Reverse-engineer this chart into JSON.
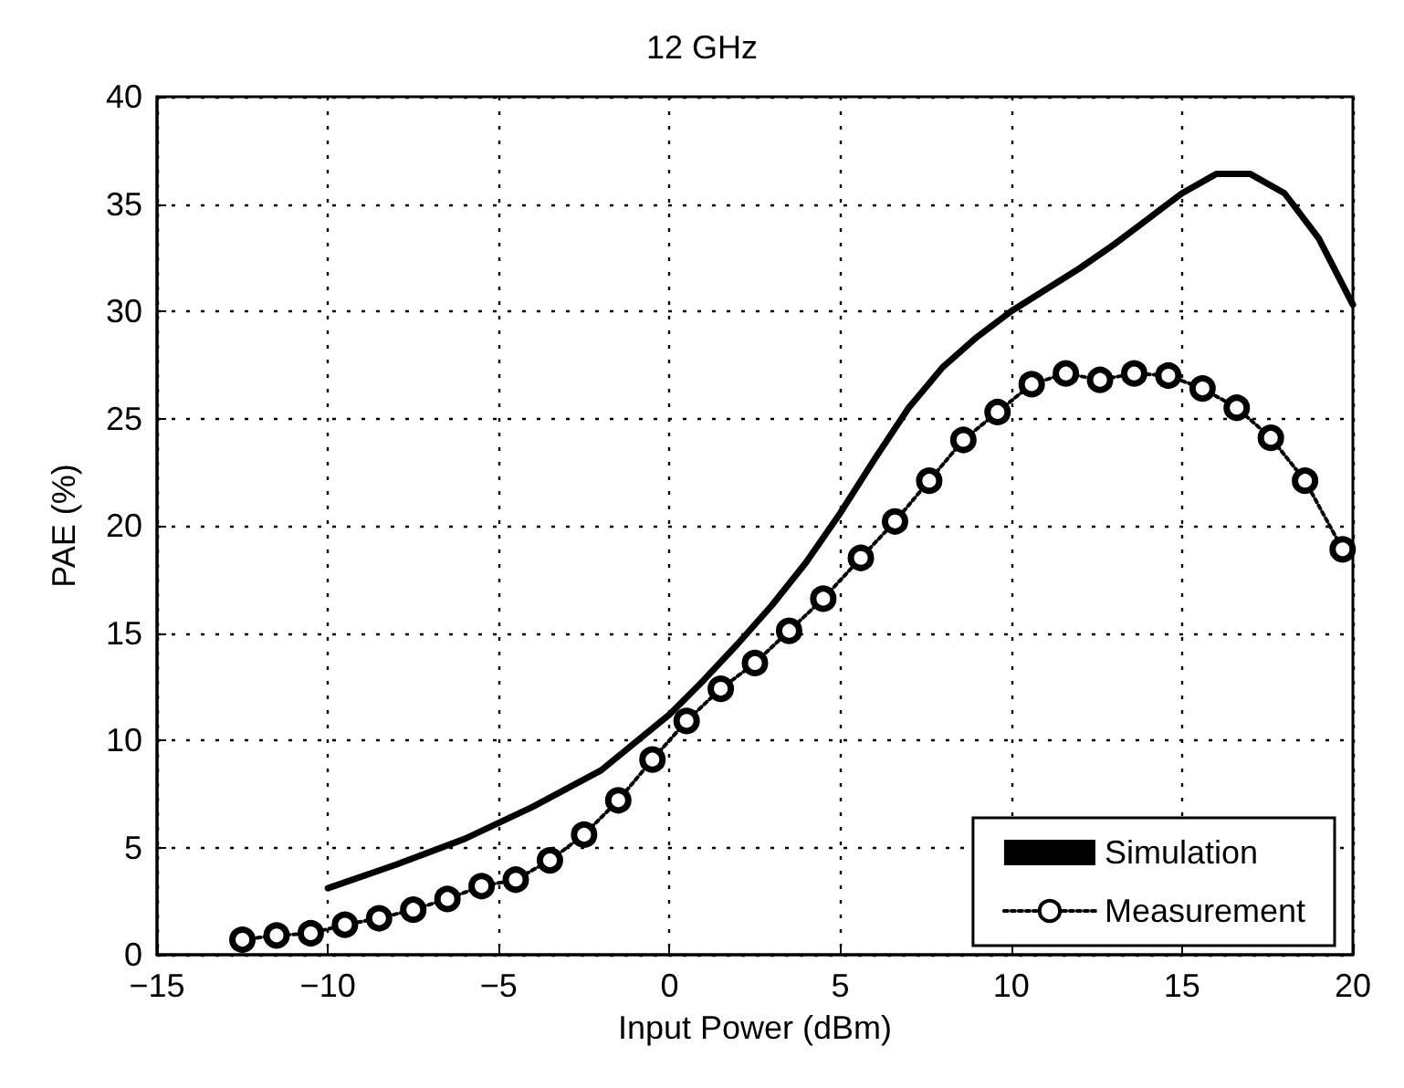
{
  "chart_data": {
    "type": "line",
    "title": "12 GHz",
    "xlabel": "Input Power (dBm)",
    "ylabel": "PAE (%)",
    "xlim": [
      -15,
      20
    ],
    "xticks": [
      {
        "value": -15,
        "label": "−15"
      },
      {
        "value": -10,
        "label": "−10"
      },
      {
        "value": -5,
        "label": "−5"
      },
      0,
      5,
      10,
      15,
      20
    ],
    "ylim": [
      0,
      40
    ],
    "yticks": [
      0,
      5,
      10,
      15,
      20,
      25,
      30,
      35,
      40
    ],
    "grid": true,
    "legend": "bottom right",
    "series": [
      {
        "name": "Simulation",
        "color": "#000000",
        "marker": "none",
        "line_style": "solid",
        "x": [
          -10,
          -8,
          -6,
          -4,
          -2,
          0,
          1,
          2,
          3,
          4,
          5,
          6,
          7,
          8,
          9,
          10,
          11,
          12,
          13,
          14,
          15,
          16,
          17,
          18,
          19,
          20
        ],
        "values": [
          3.1,
          4.2,
          5.4,
          6.9,
          8.6,
          11.2,
          12.8,
          14.5,
          16.3,
          18.3,
          20.6,
          23.1,
          25.5,
          27.4,
          28.8,
          30.0,
          31.0,
          32.0,
          33.1,
          34.3,
          35.5,
          36.4,
          36.4,
          35.5,
          33.4,
          30.3
        ]
      },
      {
        "name": "Measurement",
        "color": "#000000",
        "marker": "circle",
        "line_style": "dotted",
        "x": [
          -12.5,
          -11.5,
          -10.5,
          -9.5,
          -8.5,
          -7.5,
          -6.5,
          -5.5,
          -4.5,
          -3.5,
          -2.5,
          -1.5,
          -0.5,
          0.5,
          1.5,
          2.5,
          3.5,
          4.5,
          5.6,
          6.6,
          7.6,
          8.6,
          9.6,
          10.6,
          11.6,
          12.6,
          13.6,
          14.6,
          15.6,
          16.6,
          17.6,
          18.6,
          19.7
        ],
        "values": [
          0.7,
          0.9,
          1.0,
          1.4,
          1.7,
          2.1,
          2.6,
          3.2,
          3.5,
          4.4,
          5.6,
          7.2,
          9.1,
          10.9,
          12.4,
          13.6,
          15.1,
          16.6,
          18.5,
          20.2,
          22.1,
          24.0,
          25.3,
          26.6,
          27.1,
          26.8,
          27.1,
          27.0,
          26.4,
          25.5,
          24.1,
          22.1,
          18.9
        ]
      }
    ]
  }
}
